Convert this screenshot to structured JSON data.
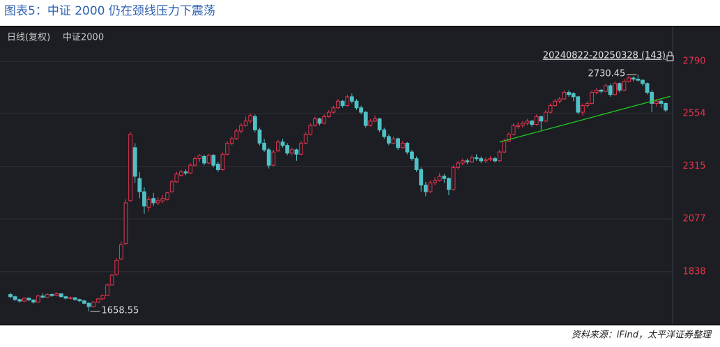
{
  "chart_data": {
    "type": "candlestick",
    "title": "图表5：中证 2000 仍在颈线压力下震荡",
    "period_label": "日线(复权)",
    "index_name": "中证2000",
    "range_label": "20240822-20250328 (143)",
    "source": "资料来源：iFind，太平洋证券整理",
    "max_label": "2730.45",
    "min_label": "1658.55",
    "up_color": "#e8344f",
    "down_color": "#4fc1c6",
    "ylim": [
      1598,
      2942
    ],
    "yticks": [
      1838,
      2077,
      2315,
      2554,
      2790
    ],
    "grid": true,
    "trendline": {
      "color": "#22cc22",
      "points": [
        [
          106,
          2425
        ],
        [
          143,
          2632
        ]
      ]
    },
    "candles": [
      [
        1735,
        1742,
        1718,
        1725
      ],
      [
        1725,
        1730,
        1705,
        1712
      ],
      [
        1712,
        1716,
        1698,
        1705
      ],
      [
        1705,
        1722,
        1700,
        1718
      ],
      [
        1718,
        1722,
        1704,
        1710
      ],
      [
        1710,
        1714,
        1694,
        1700
      ],
      [
        1700,
        1735,
        1698,
        1728
      ],
      [
        1728,
        1740,
        1718,
        1722
      ],
      [
        1722,
        1742,
        1718,
        1735
      ],
      [
        1735,
        1740,
        1724,
        1730
      ],
      [
        1730,
        1745,
        1726,
        1738
      ],
      [
        1738,
        1740,
        1720,
        1725
      ],
      [
        1725,
        1730,
        1712,
        1718
      ],
      [
        1718,
        1726,
        1712,
        1720
      ],
      [
        1720,
        1724,
        1706,
        1712
      ],
      [
        1712,
        1716,
        1700,
        1706
      ],
      [
        1706,
        1710,
        1690,
        1695
      ],
      [
        1695,
        1700,
        1658.55,
        1680
      ],
      [
        1680,
        1705,
        1676,
        1700
      ],
      [
        1700,
        1720,
        1696,
        1715
      ],
      [
        1715,
        1735,
        1710,
        1730
      ],
      [
        1730,
        1785,
        1728,
        1778
      ],
      [
        1778,
        1830,
        1775,
        1822
      ],
      [
        1825,
        1900,
        1820,
        1890
      ],
      [
        1895,
        1975,
        1890,
        1960
      ],
      [
        1965,
        2165,
        1960,
        2150
      ],
      [
        2160,
        2470,
        2155,
        2460
      ],
      [
        2400,
        2420,
        2240,
        2270
      ],
      [
        2260,
        2290,
        2170,
        2200
      ],
      [
        2200,
        2220,
        2100,
        2135
      ],
      [
        2130,
        2180,
        2110,
        2165
      ],
      [
        2170,
        2195,
        2135,
        2150
      ],
      [
        2150,
        2175,
        2140,
        2160
      ],
      [
        2158,
        2185,
        2150,
        2170
      ],
      [
        2165,
        2200,
        2160,
        2195
      ],
      [
        2200,
        2255,
        2195,
        2245
      ],
      [
        2245,
        2290,
        2240,
        2280
      ],
      [
        2275,
        2300,
        2268,
        2290
      ],
      [
        2290,
        2300,
        2275,
        2285
      ],
      [
        2285,
        2330,
        2280,
        2320
      ],
      [
        2320,
        2360,
        2315,
        2350
      ],
      [
        2350,
        2370,
        2335,
        2365
      ],
      [
        2360,
        2368,
        2320,
        2330
      ],
      [
        2330,
        2372,
        2325,
        2365
      ],
      [
        2365,
        2370,
        2310,
        2320
      ],
      [
        2325,
        2335,
        2290,
        2300
      ],
      [
        2300,
        2378,
        2295,
        2370
      ],
      [
        2370,
        2430,
        2365,
        2420
      ],
      [
        2420,
        2450,
        2410,
        2440
      ],
      [
        2440,
        2485,
        2435,
        2475
      ],
      [
        2475,
        2510,
        2465,
        2500
      ],
      [
        2500,
        2540,
        2495,
        2520
      ],
      [
        2520,
        2555,
        2510,
        2545
      ],
      [
        2540,
        2550,
        2470,
        2480
      ],
      [
        2480,
        2490,
        2410,
        2420
      ],
      [
        2420,
        2440,
        2380,
        2390
      ],
      [
        2390,
        2400,
        2305,
        2320
      ],
      [
        2320,
        2390,
        2315,
        2380
      ],
      [
        2385,
        2435,
        2380,
        2425
      ],
      [
        2425,
        2440,
        2400,
        2410
      ],
      [
        2410,
        2420,
        2365,
        2375
      ],
      [
        2375,
        2400,
        2365,
        2390
      ],
      [
        2390,
        2395,
        2340,
        2370
      ],
      [
        2370,
        2430,
        2365,
        2420
      ],
      [
        2420,
        2470,
        2415,
        2460
      ],
      [
        2460,
        2510,
        2455,
        2500
      ],
      [
        2500,
        2540,
        2495,
        2530
      ],
      [
        2530,
        2535,
        2500,
        2510
      ],
      [
        2510,
        2550,
        2505,
        2540
      ],
      [
        2540,
        2570,
        2535,
        2560
      ],
      [
        2560,
        2590,
        2555,
        2580
      ],
      [
        2580,
        2620,
        2575,
        2610
      ],
      [
        2610,
        2615,
        2580,
        2590
      ],
      [
        2590,
        2640,
        2585,
        2630
      ],
      [
        2630,
        2645,
        2600,
        2610
      ],
      [
        2610,
        2620,
        2570,
        2580
      ],
      [
        2580,
        2590,
        2550,
        2560
      ],
      [
        2560,
        2565,
        2490,
        2500
      ],
      [
        2500,
        2530,
        2495,
        2520
      ],
      [
        2520,
        2545,
        2515,
        2530
      ],
      [
        2530,
        2535,
        2470,
        2480
      ],
      [
        2480,
        2490,
        2440,
        2450
      ],
      [
        2450,
        2460,
        2410,
        2420
      ],
      [
        2420,
        2450,
        2415,
        2440
      ],
      [
        2440,
        2445,
        2390,
        2400
      ],
      [
        2400,
        2430,
        2395,
        2420
      ],
      [
        2420,
        2425,
        2370,
        2380
      ],
      [
        2380,
        2390,
        2340,
        2350
      ],
      [
        2350,
        2360,
        2290,
        2300
      ],
      [
        2300,
        2310,
        2200,
        2230
      ],
      [
        2230,
        2245,
        2180,
        2200
      ],
      [
        2200,
        2250,
        2195,
        2240
      ],
      [
        2240,
        2265,
        2230,
        2250
      ],
      [
        2250,
        2285,
        2245,
        2270
      ],
      [
        2270,
        2280,
        2240,
        2260
      ],
      [
        2260,
        2265,
        2185,
        2210
      ],
      [
        2210,
        2320,
        2205,
        2310
      ],
      [
        2310,
        2340,
        2300,
        2330
      ],
      [
        2330,
        2350,
        2320,
        2340
      ],
      [
        2340,
        2350,
        2325,
        2335
      ],
      [
        2335,
        2365,
        2330,
        2355
      ],
      [
        2355,
        2370,
        2340,
        2350
      ],
      [
        2350,
        2360,
        2330,
        2340
      ],
      [
        2340,
        2355,
        2330,
        2345
      ],
      [
        2345,
        2362,
        2338,
        2350
      ],
      [
        2350,
        2358,
        2332,
        2340
      ],
      [
        2340,
        2390,
        2335,
        2380
      ],
      [
        2380,
        2440,
        2375,
        2430
      ],
      [
        2430,
        2470,
        2425,
        2460
      ],
      [
        2460,
        2510,
        2455,
        2500
      ],
      [
        2495,
        2515,
        2485,
        2500
      ],
      [
        2500,
        2520,
        2490,
        2510
      ],
      [
        2510,
        2530,
        2500,
        2520
      ],
      [
        2520,
        2525,
        2495,
        2505
      ],
      [
        2505,
        2550,
        2500,
        2540
      ],
      [
        2540,
        2545,
        2480,
        2520
      ],
      [
        2520,
        2570,
        2515,
        2560
      ],
      [
        2560,
        2600,
        2555,
        2590
      ],
      [
        2590,
        2620,
        2585,
        2610
      ],
      [
        2610,
        2630,
        2600,
        2620
      ],
      [
        2620,
        2660,
        2615,
        2650
      ],
      [
        2650,
        2660,
        2630,
        2640
      ],
      [
        2645,
        2650,
        2610,
        2630
      ],
      [
        2630,
        2635,
        2550,
        2560
      ],
      [
        2560,
        2600,
        2545,
        2590
      ],
      [
        2590,
        2610,
        2580,
        2600
      ],
      [
        2600,
        2660,
        2595,
        2650
      ],
      [
        2650,
        2670,
        2640,
        2660
      ],
      [
        2660,
        2665,
        2645,
        2655
      ],
      [
        2655,
        2690,
        2650,
        2680
      ],
      [
        2680,
        2690,
        2630,
        2640
      ],
      [
        2640,
        2700,
        2635,
        2690
      ],
      [
        2690,
        2695,
        2650,
        2660
      ],
      [
        2660,
        2710,
        2655,
        2700
      ],
      [
        2700,
        2725,
        2695,
        2715
      ],
      [
        2715,
        2722,
        2700,
        2710
      ],
      [
        2710,
        2730.45,
        2698,
        2705
      ],
      [
        2705,
        2710,
        2680,
        2690
      ],
      [
        2690,
        2695,
        2640,
        2650
      ],
      [
        2650,
        2660,
        2560,
        2600
      ],
      [
        2600,
        2620,
        2585,
        2610
      ],
      [
        2610,
        2618,
        2580,
        2600
      ],
      [
        2600,
        2605,
        2560,
        2570
      ]
    ]
  }
}
